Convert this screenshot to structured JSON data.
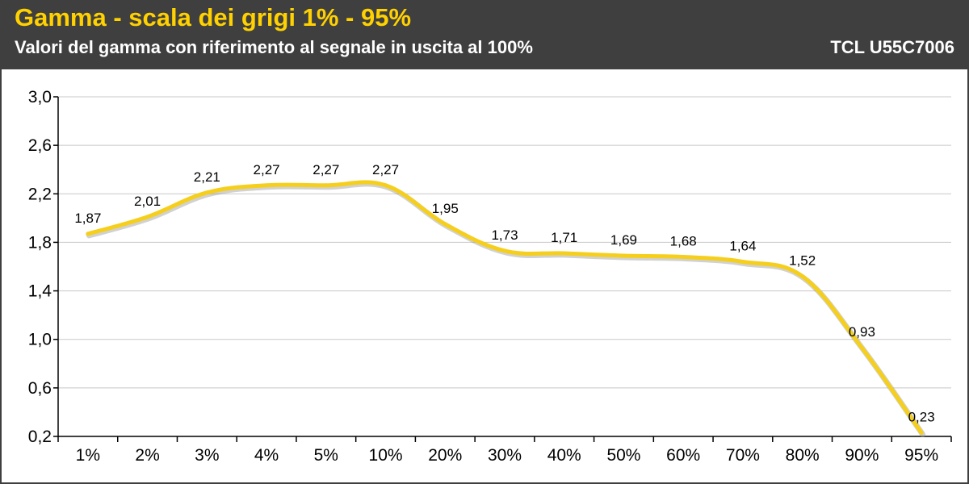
{
  "header": {
    "title": "Gamma - scala dei grigi 1% - 95%",
    "subtitle": "Valori del gamma con riferimento al segnale in uscita al 100%",
    "model": "TCL U55C7006"
  },
  "colors": {
    "header_bg": "#3f3f3f",
    "title": "#ffd100",
    "line": "#f5cf1b",
    "grid": "#c8c8c8"
  },
  "chart_data": {
    "type": "line",
    "title": "Gamma - scala dei grigi 1% - 95%",
    "subtitle": "Valori del gamma con riferimento al segnale in uscita al 100%",
    "categories": [
      "1%",
      "2%",
      "3%",
      "4%",
      "5%",
      "10%",
      "20%",
      "30%",
      "40%",
      "50%",
      "60%",
      "70%",
      "80%",
      "90%",
      "95%"
    ],
    "values": [
      1.87,
      2.01,
      2.21,
      2.27,
      2.27,
      2.27,
      1.95,
      1.73,
      1.71,
      1.69,
      1.68,
      1.64,
      1.52,
      0.93,
      0.23
    ],
    "value_labels": [
      "1,87",
      "2,01",
      "2,21",
      "2,27",
      "2,27",
      "2,27",
      "1,95",
      "1,73",
      "1,71",
      "1,69",
      "1,68",
      "1,64",
      "1,52",
      "0,93",
      "0,23"
    ],
    "y_ticks": [
      0.2,
      0.6,
      1.0,
      1.4,
      1.8,
      2.2,
      2.6,
      3.0
    ],
    "y_tick_labels": [
      "0,2",
      "0,6",
      "1,0",
      "1,4",
      "1,8",
      "2,2",
      "2,6",
      "3,0"
    ],
    "ylim": [
      0.2,
      3.0
    ],
    "grid": true,
    "legend": "none"
  }
}
